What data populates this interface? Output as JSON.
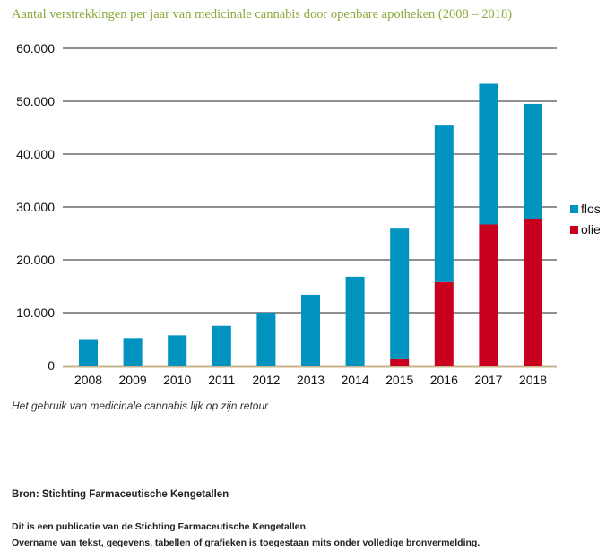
{
  "chart_data": {
    "type": "bar",
    "stacked": true,
    "title": "Aantal verstrekkingen per jaar van medicinale cannabis door openbare apotheken (2008 – 2018)",
    "categories": [
      "2008",
      "2009",
      "2010",
      "2011",
      "2012",
      "2013",
      "2014",
      "2015",
      "2016",
      "2017",
      "2018"
    ],
    "series": [
      {
        "name": "olie",
        "color": "#c8001e",
        "values": [
          0,
          0,
          0,
          0,
          0,
          0,
          0,
          1200,
          15800,
          26700,
          27800
        ]
      },
      {
        "name": "flos",
        "color": "#0093c0",
        "values": [
          5000,
          5200,
          5700,
          7500,
          10000,
          13400,
          16800,
          24700,
          29600,
          26600,
          21700
        ]
      }
    ],
    "ylim": [
      0,
      60000
    ],
    "yticks": [
      0,
      10000,
      20000,
      30000,
      40000,
      50000,
      60000
    ],
    "ytick_labels": [
      "0",
      "10.000",
      "20.000",
      "30.000",
      "40.000",
      "50.000",
      "60.000"
    ],
    "xlabel": "",
    "ylabel": "",
    "grid": true,
    "legend_position": "right",
    "legend_order": [
      "flos",
      "olie"
    ]
  },
  "caption": "Het gebruik van medicinale cannabis lijk op zijn retour",
  "source": "Bron: Stichting Farmaceutische Kengetallen",
  "publication_line1": "Dit is een publicatie van de Stichting Farmaceutische Kengetallen.",
  "publication_line2": "Overname van tekst, gegevens, tabellen of grafieken is toegestaan mits onder volledige bronvermelding."
}
